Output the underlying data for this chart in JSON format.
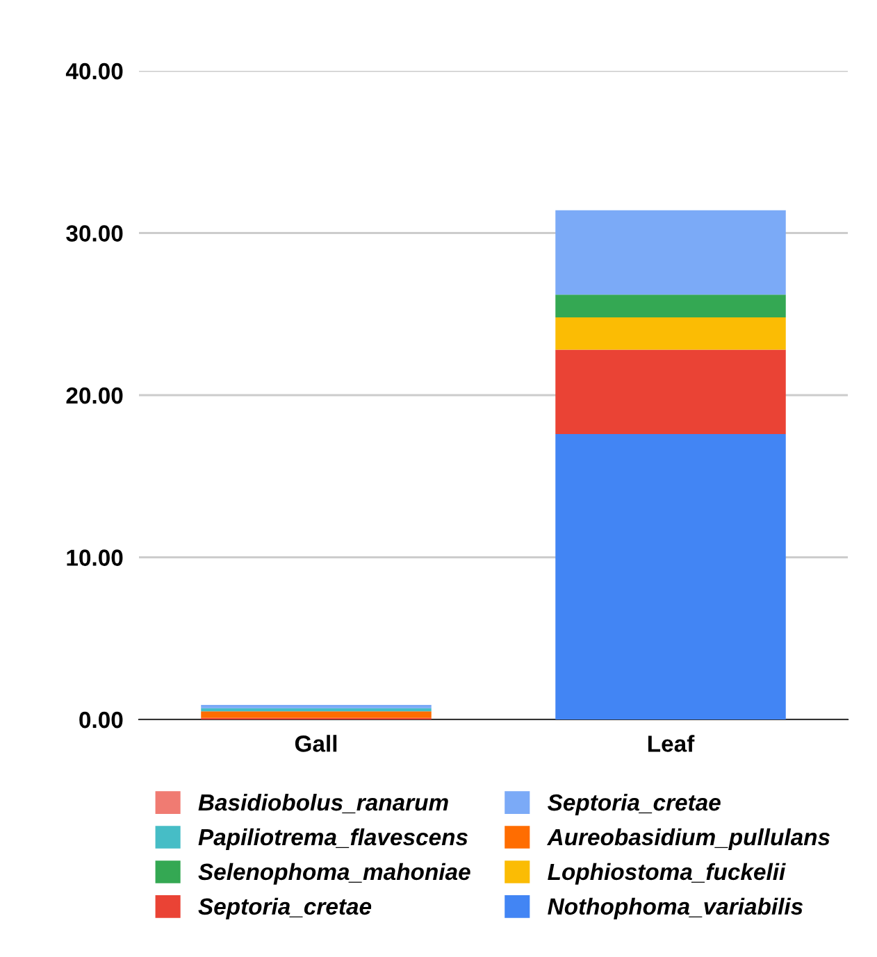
{
  "chart_data": {
    "type": "bar",
    "stacked": true,
    "categories": [
      "Gall",
      "Leaf"
    ],
    "series": [
      {
        "name": "Nothophoma_variabilis",
        "color": "#4285f4",
        "values": [
          0,
          17.6
        ]
      },
      {
        "name": "Septoria_cretae",
        "color": "#ea4335",
        "values": [
          0.1,
          5.2
        ]
      },
      {
        "name": "Lophiostoma_fuckelii",
        "color": "#fbbc04",
        "values": [
          0,
          2.0
        ]
      },
      {
        "name": "Selenophoma_mahoniae",
        "color": "#34a853",
        "values": [
          0,
          1.4
        ]
      },
      {
        "name": "Aureobasidium_pullulans",
        "color": "#ff6d01",
        "values": [
          0.4,
          0
        ]
      },
      {
        "name": "Papiliotrema_flavescens",
        "color": "#46bdc6",
        "values": [
          0.2,
          0
        ]
      },
      {
        "name": "Septoria_cretae",
        "color": "#7baaf7",
        "values": [
          0.2,
          5.2
        ]
      },
      {
        "name": "Basidiobolus_ranarum",
        "color": "#f07b72",
        "values": [
          0,
          0
        ]
      }
    ],
    "ylim": [
      0,
      40
    ],
    "yticks": [
      {
        "value": 0,
        "label": "0.00"
      },
      {
        "value": 10,
        "label": "10.00"
      },
      {
        "value": 20,
        "label": "20.00"
      },
      {
        "value": 30,
        "label": "30.00"
      },
      {
        "value": 40,
        "label": "40.00"
      }
    ],
    "grid": "y",
    "legend": "bottom"
  }
}
